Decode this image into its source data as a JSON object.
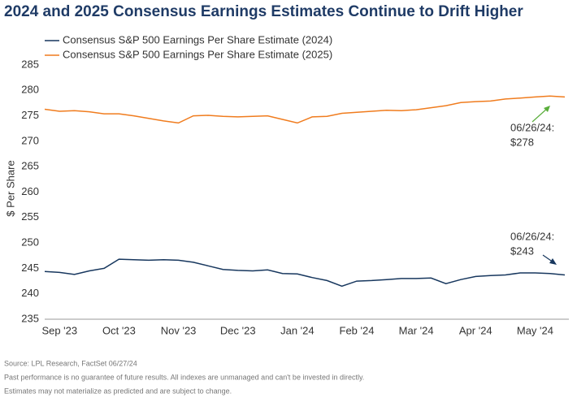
{
  "chart_data": {
    "type": "line",
    "title": "2024 and 2025 Consensus Earnings Estimates Continue to Drift Higher",
    "y_label": "$ Per Share",
    "categories": [
      null,
      "Sep '23",
      null,
      null,
      null,
      "Oct '23",
      null,
      null,
      null,
      "Nov '23",
      null,
      null,
      null,
      "Dec '23",
      null,
      null,
      null,
      "Jan '24",
      null,
      null,
      null,
      "Feb '24",
      null,
      null,
      null,
      "Mar '24",
      null,
      null,
      null,
      "Apr '24",
      null,
      null,
      null,
      "May '24",
      null,
      null
    ],
    "series": [
      {
        "name": "Consensus S&P 500 Earnings Per Share Estimate (2024)",
        "color": "#17375e",
        "values": [
          244.4,
          244.2,
          243.8,
          244.5,
          245.0,
          246.8,
          246.7,
          246.6,
          246.7,
          246.6,
          246.2,
          245.5,
          244.8,
          244.6,
          244.5,
          244.7,
          244.0,
          243.9,
          243.2,
          242.6,
          241.5,
          242.5,
          242.6,
          242.8,
          243.0,
          243.0,
          243.1,
          242.0,
          242.8,
          243.4,
          243.6,
          243.7,
          244.1,
          244.1,
          244.0,
          243.7
        ]
      },
      {
        "name": "Consensus S&P 500 Earnings Per Share Estimate (2025)",
        "color": "#f07c1e",
        "values": [
          276.3,
          275.9,
          276.0,
          275.8,
          275.4,
          275.4,
          275.0,
          274.5,
          274.0,
          273.6,
          275.0,
          275.1,
          274.9,
          274.8,
          274.9,
          275.0,
          274.3,
          273.6,
          274.8,
          274.9,
          275.5,
          275.7,
          275.9,
          276.1,
          276.0,
          276.2,
          276.6,
          277.0,
          277.6,
          277.8,
          277.9,
          278.3,
          278.5,
          278.7,
          278.9,
          278.7
        ]
      }
    ],
    "ylim": [
      235,
      285
    ],
    "yticks": [
      235,
      240,
      245,
      250,
      255,
      260,
      265,
      270,
      275,
      280,
      285
    ],
    "grid": false,
    "annotations": [
      [
        "06/26/24:",
        "$278"
      ],
      [
        "06/26/24:",
        "$243"
      ]
    ],
    "footnotes": [
      "Source: LPL Research, FactSet 06/27/24",
      "Past performance is no guarantee of future results. All indexes are unmanaged and can't be invested in directly.",
      "Estimates may not materialize as predicted and are subject to change."
    ]
  }
}
